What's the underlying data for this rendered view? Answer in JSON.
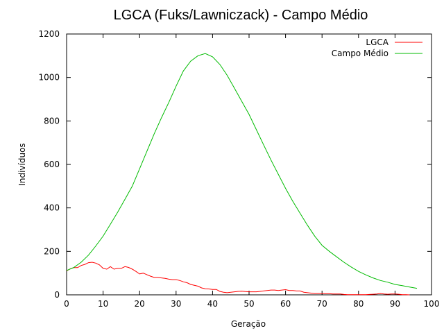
{
  "chart_data": {
    "type": "line",
    "title": "LGCA (Fuks/Lawniczack) - Campo Médio",
    "xlabel": "Geração",
    "ylabel": "Indivíduos",
    "xlim": [
      0,
      100
    ],
    "ylim": [
      0,
      1200
    ],
    "xticks": [
      "0",
      "10",
      "20",
      "30",
      "40",
      "50",
      "60",
      "70",
      "80",
      "90",
      "100"
    ],
    "yticks": [
      "0",
      "200",
      "400",
      "600",
      "800",
      "1000",
      "1200"
    ],
    "grid": false,
    "legend_position": "top-right",
    "series": [
      {
        "name": "LGCA",
        "color": "#ff0000",
        "x": [
          0,
          1,
          2,
          3,
          4,
          5,
          6,
          7,
          8,
          9,
          10,
          11,
          12,
          13,
          14,
          15,
          16,
          17,
          18,
          19,
          20,
          21,
          22,
          23,
          24,
          25,
          26,
          27,
          28,
          29,
          30,
          31,
          32,
          33,
          34,
          35,
          36,
          37,
          38,
          39,
          40,
          41,
          42,
          43,
          44,
          45,
          46,
          47,
          48,
          49,
          50,
          51,
          52,
          53,
          54,
          55,
          56,
          57,
          58,
          59,
          60,
          61,
          62,
          63,
          64,
          65,
          66,
          67,
          68,
          69,
          70,
          71,
          72,
          73,
          74,
          75,
          76,
          77,
          78,
          79,
          80,
          81,
          82,
          83,
          84,
          85,
          86,
          87,
          88,
          89,
          90,
          91,
          92,
          93,
          94
        ],
        "values": [
          110,
          120,
          125,
          125,
          135,
          140,
          148,
          150,
          146,
          138,
          122,
          118,
          130,
          118,
          122,
          122,
          130,
          126,
          118,
          108,
          96,
          100,
          93,
          86,
          80,
          80,
          78,
          76,
          72,
          70,
          70,
          66,
          60,
          56,
          48,
          44,
          40,
          32,
          28,
          27,
          25,
          25,
          16,
          12,
          10,
          12,
          14,
          16,
          17,
          15,
          14,
          14,
          14,
          16,
          18,
          20,
          22,
          22,
          20,
          22,
          24,
          20,
          20,
          18,
          18,
          12,
          10,
          8,
          6,
          6,
          6,
          5,
          5,
          4,
          4,
          4,
          2,
          1,
          1,
          1,
          1,
          1,
          1,
          2,
          3,
          4,
          6,
          4,
          3,
          4,
          4,
          3,
          1,
          1,
          0
        ]
      },
      {
        "name": "Campo Médio",
        "color": "#00bb00",
        "x": [
          0,
          2,
          4,
          6,
          8,
          10,
          12,
          14,
          16,
          18,
          20,
          22,
          24,
          26,
          28,
          30,
          32,
          34,
          36,
          38,
          40,
          42,
          44,
          46,
          48,
          50,
          52,
          54,
          56,
          58,
          60,
          62,
          64,
          66,
          68,
          70,
          72,
          74,
          76,
          78,
          80,
          82,
          84,
          86,
          88,
          90,
          92,
          94,
          96
        ],
        "values": [
          112,
          126,
          150,
          183,
          225,
          270,
          325,
          380,
          440,
          500,
          580,
          660,
          740,
          815,
          885,
          960,
          1030,
          1075,
          1100,
          1110,
          1095,
          1060,
          1010,
          950,
          890,
          830,
          760,
          690,
          620,
          555,
          490,
          430,
          375,
          320,
          270,
          228,
          200,
          175,
          150,
          128,
          108,
          92,
          78,
          66,
          58,
          48,
          42,
          36,
          30
        ]
      }
    ]
  }
}
